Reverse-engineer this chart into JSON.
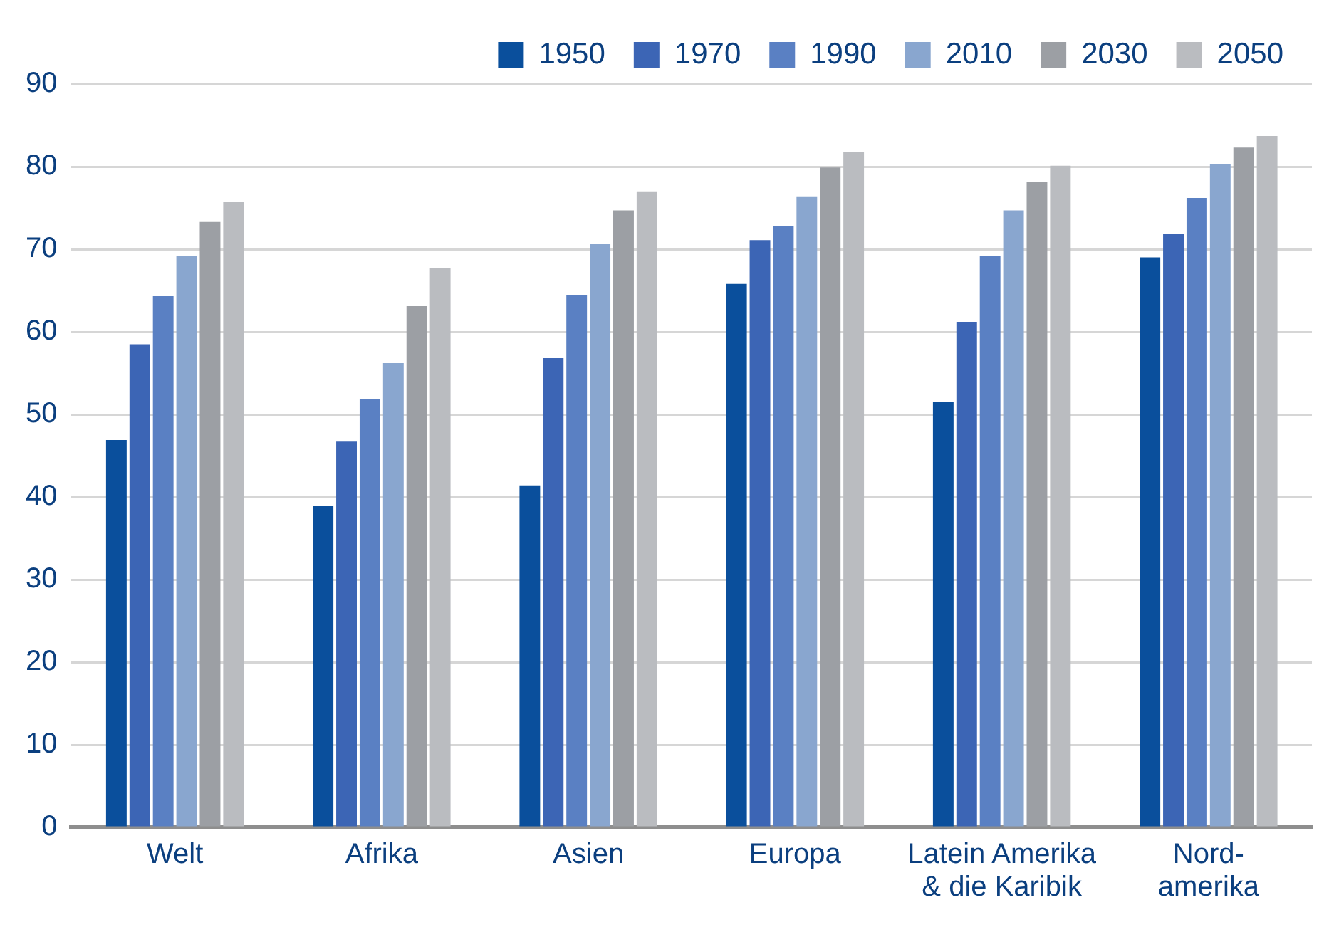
{
  "chart_data": {
    "type": "bar",
    "categories": [
      "Welt",
      "Afrika",
      "Asien",
      "Europa",
      "Latein Amerika\n& die Karibik",
      "Nord-\namerika"
    ],
    "series": [
      {
        "name": "1950",
        "color": "#0a4f9c",
        "values": [
          46.9,
          38.9,
          41.4,
          65.8,
          51.5,
          69.0
        ]
      },
      {
        "name": "1970",
        "color": "#3c65b5",
        "values": [
          58.5,
          46.7,
          56.8,
          71.1,
          61.2,
          71.8
        ]
      },
      {
        "name": "1990",
        "color": "#5a80c3",
        "values": [
          64.3,
          51.8,
          64.4,
          72.8,
          69.2,
          76.2
        ]
      },
      {
        "name": "2010",
        "color": "#89a6cf",
        "values": [
          69.2,
          56.2,
          70.6,
          76.4,
          74.7,
          80.3
        ]
      },
      {
        "name": "2030",
        "color": "#9c9fa4",
        "values": [
          73.3,
          63.1,
          74.7,
          79.9,
          78.2,
          82.3
        ]
      },
      {
        "name": "2050",
        "color": "#babcc0",
        "values": [
          75.7,
          67.7,
          77.0,
          81.8,
          80.1,
          83.7
        ]
      }
    ],
    "ylim": [
      0,
      90
    ],
    "yticks": [
      0,
      10,
      20,
      30,
      40,
      50,
      60,
      70,
      80,
      90
    ],
    "grid": "y",
    "legend": "top right"
  }
}
